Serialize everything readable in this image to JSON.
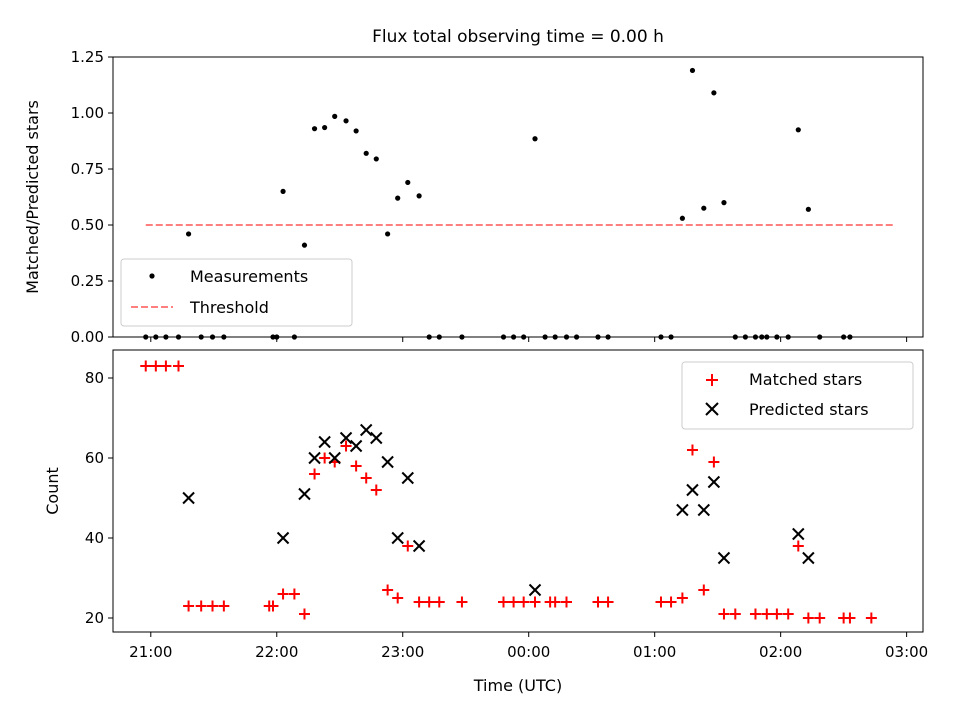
{
  "title": "Flux total observing time = 0.00 h",
  "xlabel": "Time (UTC)",
  "x_ticks": [
    "21:00",
    "22:00",
    "23:00",
    "00:00",
    "01:00",
    "02:00",
    "03:00"
  ],
  "colors": {
    "measurement": "#000000",
    "threshold": "#ff7f7f",
    "matched": "#ff0000",
    "predicted": "#000000"
  },
  "chart_data": [
    {
      "type": "scatter",
      "ylabel": "Matched/Predicted stars",
      "ylim": [
        0,
        1.25
      ],
      "y_ticks": [
        "0.00",
        "0.25",
        "0.50",
        "0.75",
        "1.00",
        "1.25"
      ],
      "x_unit": "hours after 21:00 UTC",
      "xlim": [
        -0.3,
        6.13
      ],
      "legend_position": "lower-left",
      "series": [
        {
          "name": "Measurements",
          "marker": "dot",
          "points": [
            [
              -0.04,
              0
            ],
            [
              0.04,
              0
            ],
            [
              0.12,
              0
            ],
            [
              0.22,
              0
            ],
            [
              0.3,
              0.46
            ],
            [
              0.4,
              0
            ],
            [
              0.49,
              0
            ],
            [
              0.58,
              0
            ],
            [
              0.97,
              0
            ],
            [
              1.0,
              0
            ],
            [
              1.05,
              0.65
            ],
            [
              1.14,
              0
            ],
            [
              1.22,
              0.41
            ],
            [
              1.3,
              0.93
            ],
            [
              1.38,
              0.935
            ],
            [
              1.46,
              0.985
            ],
            [
              1.55,
              0.965
            ],
            [
              1.63,
              0.92
            ],
            [
              1.71,
              0.82
            ],
            [
              1.79,
              0.795
            ],
            [
              1.88,
              0.46
            ],
            [
              1.96,
              0.62
            ],
            [
              2.04,
              0.69
            ],
            [
              2.13,
              0.63
            ],
            [
              2.21,
              0
            ],
            [
              2.29,
              0
            ],
            [
              2.47,
              0
            ],
            [
              2.8,
              0
            ],
            [
              2.88,
              0
            ],
            [
              2.96,
              0
            ],
            [
              3.05,
              0.885
            ],
            [
              3.13,
              0
            ],
            [
              3.21,
              0
            ],
            [
              3.3,
              0
            ],
            [
              3.38,
              0
            ],
            [
              3.55,
              0
            ],
            [
              3.63,
              0
            ],
            [
              4.05,
              0
            ],
            [
              4.13,
              0
            ],
            [
              4.22,
              0.53
            ],
            [
              4.3,
              1.19
            ],
            [
              4.39,
              0.575
            ],
            [
              4.47,
              1.09
            ],
            [
              4.55,
              0.6
            ],
            [
              4.64,
              0
            ],
            [
              4.72,
              0
            ],
            [
              4.8,
              0
            ],
            [
              4.85,
              0
            ],
            [
              4.89,
              0
            ],
            [
              4.97,
              0
            ],
            [
              5.06,
              0
            ],
            [
              5.14,
              0.925
            ],
            [
              5.22,
              0.57
            ],
            [
              5.31,
              0
            ],
            [
              5.5,
              0
            ],
            [
              5.55,
              0
            ]
          ]
        },
        {
          "name": "Threshold",
          "style": "dashed",
          "points": [
            [
              -0.04,
              0.5
            ],
            [
              5.89,
              0.5
            ]
          ]
        }
      ]
    },
    {
      "type": "scatter",
      "ylabel": "Count",
      "ylim": [
        16.5,
        87
      ],
      "y_ticks": [
        "20",
        "40",
        "60",
        "80"
      ],
      "x_unit": "hours after 21:00 UTC",
      "xlim": [
        -0.3,
        6.13
      ],
      "legend_position": "top-right",
      "series": [
        {
          "name": "Matched stars",
          "marker": "plus",
          "points": [
            [
              -0.04,
              83
            ],
            [
              0.04,
              83
            ],
            [
              0.12,
              83
            ],
            [
              0.22,
              83
            ],
            [
              0.3,
              23
            ],
            [
              0.4,
              23
            ],
            [
              0.49,
              23
            ],
            [
              0.58,
              23
            ],
            [
              0.94,
              23
            ],
            [
              0.97,
              23
            ],
            [
              1.05,
              26
            ],
            [
              1.14,
              26
            ],
            [
              1.22,
              21
            ],
            [
              1.3,
              56
            ],
            [
              1.38,
              60
            ],
            [
              1.46,
              59
            ],
            [
              1.55,
              63
            ],
            [
              1.63,
              58
            ],
            [
              1.71,
              55
            ],
            [
              1.79,
              52
            ],
            [
              1.88,
              27
            ],
            [
              1.96,
              25
            ],
            [
              2.04,
              38
            ],
            [
              2.13,
              24
            ],
            [
              2.21,
              24
            ],
            [
              2.29,
              24
            ],
            [
              2.47,
              24
            ],
            [
              2.8,
              24
            ],
            [
              2.88,
              24
            ],
            [
              2.96,
              24
            ],
            [
              3.05,
              24
            ],
            [
              3.17,
              24
            ],
            [
              3.21,
              24
            ],
            [
              3.3,
              24
            ],
            [
              3.55,
              24
            ],
            [
              3.63,
              24
            ],
            [
              4.05,
              24
            ],
            [
              4.13,
              24
            ],
            [
              4.22,
              25
            ],
            [
              4.3,
              62
            ],
            [
              4.39,
              27
            ],
            [
              4.47,
              59
            ],
            [
              4.55,
              21
            ],
            [
              4.64,
              21
            ],
            [
              4.8,
              21
            ],
            [
              4.89,
              21
            ],
            [
              4.97,
              21
            ],
            [
              5.06,
              21
            ],
            [
              5.14,
              38
            ],
            [
              5.22,
              20
            ],
            [
              5.31,
              20
            ],
            [
              5.5,
              20
            ],
            [
              5.55,
              20
            ],
            [
              5.72,
              20
            ]
          ]
        },
        {
          "name": "Predicted stars",
          "marker": "x",
          "points": [
            [
              0.3,
              50
            ],
            [
              1.05,
              40
            ],
            [
              1.22,
              51
            ],
            [
              1.3,
              60
            ],
            [
              1.38,
              64
            ],
            [
              1.46,
              60
            ],
            [
              1.55,
              65
            ],
            [
              1.63,
              63
            ],
            [
              1.71,
              67
            ],
            [
              1.79,
              65
            ],
            [
              1.88,
              59
            ],
            [
              1.96,
              40
            ],
            [
              2.04,
              55
            ],
            [
              2.13,
              38
            ],
            [
              3.05,
              27
            ],
            [
              4.22,
              47
            ],
            [
              4.3,
              52
            ],
            [
              4.39,
              47
            ],
            [
              4.47,
              54
            ],
            [
              4.55,
              35
            ],
            [
              5.14,
              41
            ],
            [
              5.22,
              35
            ]
          ]
        }
      ]
    }
  ]
}
